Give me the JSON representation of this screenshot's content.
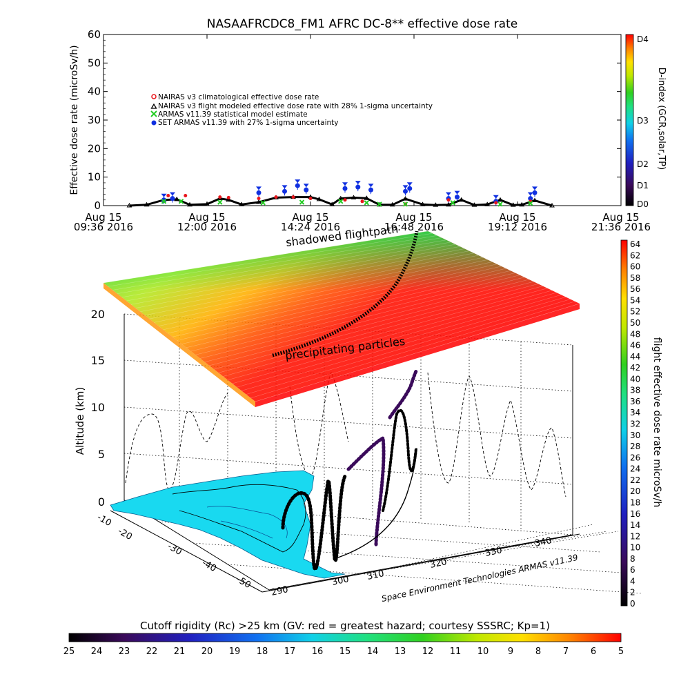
{
  "chart_data": [
    {
      "type": "line",
      "title": "NASAAFRCDC8_FM1 AFRC DC-8** effective dose rate",
      "ylabel": "Effective dose rate (microSv/h)",
      "ylim": [
        0,
        60
      ],
      "y_ticks": [
        "0",
        "10",
        "20",
        "30",
        "40",
        "50",
        "60"
      ],
      "x_ticks": [
        {
          "line1": "Aug 15",
          "line2": "09:36 2016"
        },
        {
          "line1": "Aug 15",
          "line2": "12:00 2016"
        },
        {
          "line1": "Aug 15",
          "line2": "14:24 2016"
        },
        {
          "line1": "Aug 15",
          "line2": "16:48 2016"
        },
        {
          "line1": "Aug 15",
          "line2": "19:12 2016"
        },
        {
          "line1": "Aug 15",
          "line2": "21:36 2016"
        }
      ],
      "x_range_hours": [
        9.6,
        21.6
      ],
      "legend": [
        {
          "label": "NAIRAS v3 climatological effective dose rate",
          "marker": "circle",
          "color": "#e8161b"
        },
        {
          "label": "NAIRAS v3 flight modeled effective dose rate with 28% 1-sigma uncertainty",
          "marker": "triangle",
          "color": "#000000"
        },
        {
          "label": "ARMAS v11.39 statistical model estimate",
          "marker": "x",
          "color": "#22cc22"
        },
        {
          "label": "SET ARMAS v11.39 with 27% 1-sigma uncertainty",
          "marker": "dot",
          "color": "#1030e0"
        }
      ],
      "series": [
        {
          "name": "NAIRAS v3 flight modeled effective dose rate with 28% 1-sigma uncertainty",
          "color": "#000000",
          "x": [
            10.2,
            10.6,
            11.0,
            11.3,
            11.6,
            12.0,
            12.3,
            12.5,
            12.8,
            13.2,
            13.6,
            14.0,
            14.4,
            14.6,
            14.9,
            15.1,
            15.4,
            15.7,
            16.0,
            16.3,
            16.6,
            17.0,
            17.3,
            17.6,
            17.9,
            18.2,
            18.5,
            18.8,
            19.1,
            19.3,
            19.6,
            20.0
          ],
          "y": [
            0,
            0.3,
            2.0,
            2.2,
            0.3,
            0.5,
            2.5,
            2.0,
            0.4,
            1.2,
            2.8,
            3.0,
            3.0,
            2.2,
            0.4,
            2.5,
            2.8,
            2.6,
            0.3,
            0.3,
            2.4,
            0.4,
            0.2,
            0.3,
            2.0,
            0.2,
            0.4,
            2.0,
            0.2,
            0.3,
            1.8,
            0
          ]
        },
        {
          "name": "SET ARMAS v11.39 with 27% 1-sigma uncertainty",
          "color": "#1030e0",
          "x": [
            11.0,
            11.2,
            13.2,
            13.8,
            14.1,
            14.3,
            15.2,
            15.5,
            15.8,
            16.6,
            16.7,
            17.6,
            17.8,
            18.7,
            19.5,
            19.6
          ],
          "y": [
            2.0,
            2.5,
            4.5,
            5.0,
            7.0,
            5.5,
            6.0,
            6.5,
            5.5,
            5.0,
            6.0,
            2.5,
            3.0,
            1.5,
            2.5,
            4.5
          ]
        },
        {
          "name": "NAIRAS v3 climatological effective dose rate",
          "color": "#e8161b",
          "x": [
            11.1,
            11.5,
            12.3,
            12.5,
            13.2,
            13.6,
            14.0,
            14.4,
            15.2,
            15.6,
            16.6,
            17.6,
            18.7,
            19.5
          ],
          "y": [
            3.5,
            3.5,
            3.0,
            2.8,
            2.5,
            3.0,
            3.0,
            2.5,
            2.0,
            1.5,
            0.5,
            2.0,
            1.0,
            1.5
          ]
        },
        {
          "name": "ARMAS v11.39 statistical model estimate",
          "color": "#22cc22",
          "x": [
            11.0,
            11.4,
            12.3,
            13.3,
            14.2,
            15.1,
            15.7,
            16.0,
            16.6,
            17.7,
            18.8,
            19.5
          ],
          "y": [
            1.5,
            1.5,
            1.2,
            1.0,
            1.2,
            1.5,
            1.0,
            0.5,
            0.5,
            1.0,
            0.5,
            0.8
          ]
        }
      ]
    },
    {
      "type": "surface3d",
      "zlabel": "Altitude (km)",
      "z_ticks": [
        "0",
        "5",
        "10",
        "15",
        "20"
      ],
      "latitude_ticks": [
        "-10",
        "-20",
        "-30",
        "-40",
        "-50"
      ],
      "longitude_ticks": [
        "290",
        "300",
        "310",
        "320",
        "330",
        "340"
      ],
      "annotations": [
        "shadowed flightpath",
        "precipitating particles"
      ],
      "credit": "Space Environment Technologies ARMAS v11.39"
    }
  ],
  "colorbars": {
    "d_index": {
      "label": "D-index (GCR,solar,TP)",
      "ticks": [
        "D4",
        "D3",
        "D2",
        "D1",
        "D0"
      ]
    },
    "dose": {
      "label": "flight effective dose rate microSv/h",
      "ticks": [
        "64",
        "62",
        "60",
        "58",
        "56",
        "54",
        "52",
        "50",
        "48",
        "46",
        "44",
        "42",
        "40",
        "38",
        "36",
        "34",
        "32",
        "30",
        "28",
        "26",
        "24",
        "22",
        "20",
        "18",
        "16",
        "14",
        "12",
        "10",
        "8",
        "6",
        "4",
        "2",
        "0"
      ]
    },
    "cutoff": {
      "label": "Cutoff rigidity (Rc) >25 km (GV: red = greatest hazard; courtesy SSSRC; Kp=1)",
      "ticks": [
        "25",
        "24",
        "23",
        "22",
        "21",
        "20",
        "19",
        "18",
        "17",
        "16",
        "15",
        "14",
        "13",
        "12",
        "11",
        "10",
        "9",
        "8",
        "7",
        "6",
        "5"
      ]
    }
  },
  "colors": {
    "rainbow": [
      "#000000",
      "#3a0a5a",
      "#2a1ab0",
      "#1060e8",
      "#10c8e8",
      "#20e080",
      "#30d020",
      "#c8e800",
      "#ffe000",
      "#ff8000",
      "#ff2000",
      "#ff0000"
    ],
    "map_fill": "#19d9f0",
    "path": "#000000"
  }
}
